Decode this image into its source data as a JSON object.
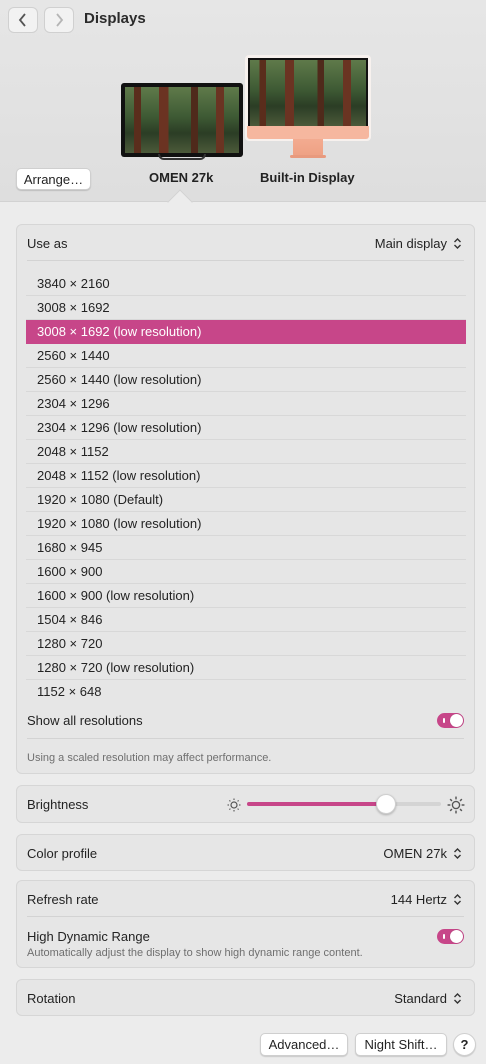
{
  "window": {
    "title": "Displays"
  },
  "header": {
    "arrange_label": "Arrange…",
    "displays": [
      {
        "label": "OMEN 27k",
        "selected": true
      },
      {
        "label": "Built-in Display",
        "selected": false
      }
    ]
  },
  "use_as": {
    "label": "Use as",
    "value": "Main display"
  },
  "resolutions": [
    "3840 × 2160",
    "3008 × 1692",
    "3008 × 1692 (low resolution)",
    "2560 × 1440",
    "2560 × 1440 (low resolution)",
    "2304 × 1296",
    "2304 × 1296 (low resolution)",
    "2048 × 1152",
    "2048 × 1152 (low resolution)",
    "1920 × 1080 (Default)",
    "1920 × 1080 (low resolution)",
    "1680 × 945",
    "1600 × 900",
    "1600 × 900 (low resolution)",
    "1504 × 846",
    "1280 × 720",
    "1280 × 720 (low resolution)",
    "1152 × 648"
  ],
  "selected_resolution_index": 2,
  "show_all": {
    "label": "Show all resolutions",
    "enabled": true
  },
  "performance_note": "Using a scaled resolution may affect performance.",
  "brightness": {
    "label": "Brightness",
    "level": 0.74
  },
  "color_profile": {
    "label": "Color profile",
    "value": "OMEN 27k"
  },
  "refresh_rate": {
    "label": "Refresh rate",
    "value": "144 Hertz"
  },
  "hdr": {
    "label": "High Dynamic Range",
    "description": "Automatically adjust the display to show high dynamic range content.",
    "enabled": true
  },
  "rotation": {
    "label": "Rotation",
    "value": "Standard"
  },
  "footer": {
    "advanced_label": "Advanced…",
    "night_shift_label": "Night Shift…",
    "help_label": "?"
  },
  "colors": {
    "accent": "#c74689",
    "panel": "#e6e6e6",
    "background": "#ececec"
  }
}
